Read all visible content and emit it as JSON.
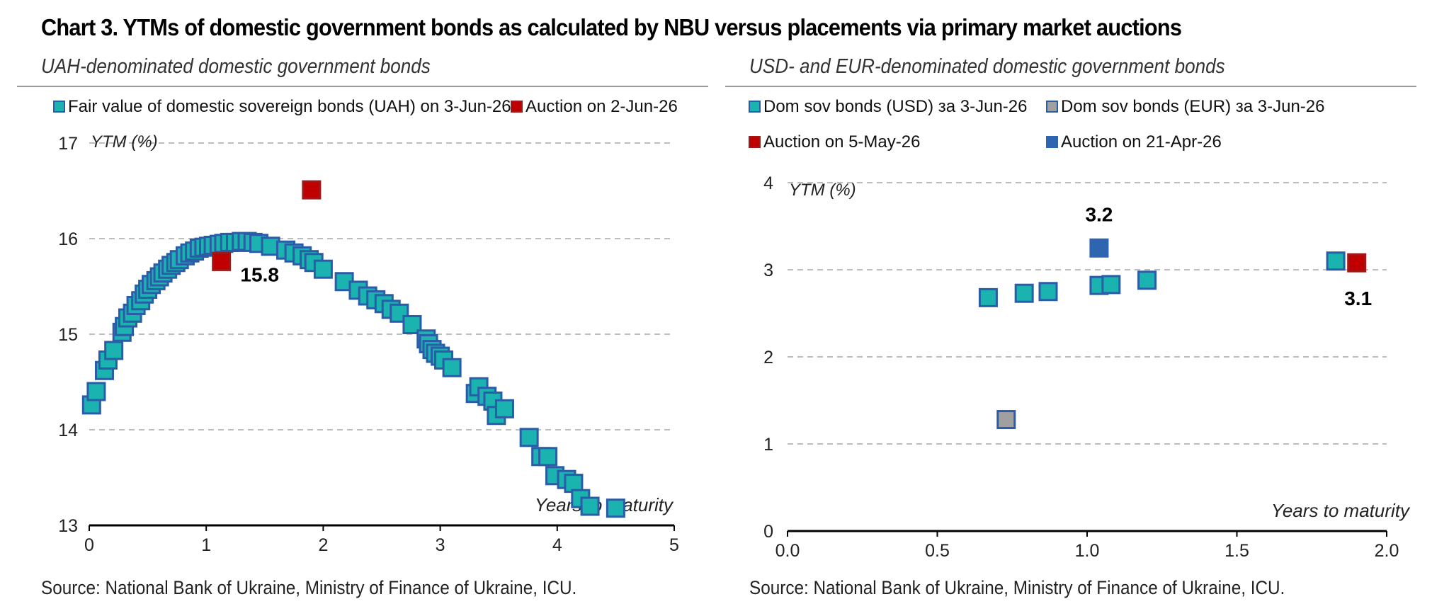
{
  "title": "Chart 3. YTMs of domestic government bonds as calculated by NBU versus placements via primary market auctions",
  "source_left": "Source: National Bank of Ukraine, Ministry of Finance of Ukraine, ICU.",
  "source_right": "Source: National Bank of Ukraine, Ministry of Finance of Ukraine, ICU.",
  "colors": {
    "teal": "#1ab3b0",
    "teal_edge": "#2a5ca8",
    "red": "#c00000",
    "red_edge": "#9e1a1a",
    "grey": "#a0a0a0",
    "blue": "#2d65b0",
    "grid": "#bdbdbd"
  },
  "chart_data": [
    {
      "type": "scatter",
      "subtitle": "UAH-denominated domestic government bonds",
      "ylabel": "YTM (%)",
      "xlabel": "Years to maturity",
      "xlim": [
        0,
        5
      ],
      "ylim": [
        13,
        17
      ],
      "xticks": [
        "0",
        "1",
        "2",
        "3",
        "4",
        "5"
      ],
      "yticks": [
        "13",
        "14",
        "15",
        "16",
        "17"
      ],
      "grid": "horizontal dashed",
      "legend_position": "top",
      "series": [
        {
          "name": "Fair value of domestic sovereign bonds (UAH) on 3-Jun-26",
          "color": "teal",
          "points": [
            [
              0.02,
              14.26
            ],
            [
              0.06,
              14.4
            ],
            [
              0.13,
              14.62
            ],
            [
              0.16,
              14.73
            ],
            [
              0.21,
              14.83
            ],
            [
              0.28,
              15.02
            ],
            [
              0.3,
              15.08
            ],
            [
              0.33,
              15.17
            ],
            [
              0.37,
              15.22
            ],
            [
              0.4,
              15.3
            ],
            [
              0.44,
              15.35
            ],
            [
              0.47,
              15.42
            ],
            [
              0.5,
              15.47
            ],
            [
              0.53,
              15.52
            ],
            [
              0.57,
              15.56
            ],
            [
              0.6,
              15.6
            ],
            [
              0.63,
              15.64
            ],
            [
              0.67,
              15.68
            ],
            [
              0.7,
              15.72
            ],
            [
              0.74,
              15.75
            ],
            [
              0.77,
              15.78
            ],
            [
              0.82,
              15.82
            ],
            [
              0.86,
              15.85
            ],
            [
              0.9,
              15.87
            ],
            [
              0.94,
              15.9
            ],
            [
              0.98,
              15.91
            ],
            [
              1.02,
              15.92
            ],
            [
              1.06,
              15.93
            ],
            [
              1.11,
              15.94
            ],
            [
              1.15,
              15.95
            ],
            [
              1.2,
              15.96
            ],
            [
              1.25,
              15.96
            ],
            [
              1.3,
              15.97
            ],
            [
              1.35,
              15.97
            ],
            [
              1.4,
              15.96
            ],
            [
              1.45,
              15.95
            ],
            [
              1.55,
              15.92
            ],
            [
              1.68,
              15.88
            ],
            [
              1.75,
              15.85
            ],
            [
              1.82,
              15.82
            ],
            [
              1.88,
              15.78
            ],
            [
              1.92,
              15.75
            ],
            [
              2.0,
              15.68
            ],
            [
              2.18,
              15.55
            ],
            [
              2.3,
              15.46
            ],
            [
              2.38,
              15.4
            ],
            [
              2.45,
              15.36
            ],
            [
              2.52,
              15.32
            ],
            [
              2.58,
              15.26
            ],
            [
              2.65,
              15.22
            ],
            [
              2.76,
              15.1
            ],
            [
              2.88,
              14.95
            ],
            [
              2.9,
              14.9
            ],
            [
              2.93,
              14.84
            ],
            [
              2.96,
              14.8
            ],
            [
              3.0,
              14.77
            ],
            [
              3.03,
              14.73
            ],
            [
              3.1,
              14.65
            ],
            [
              3.3,
              14.38
            ],
            [
              3.33,
              14.45
            ],
            [
              3.4,
              14.35
            ],
            [
              3.45,
              14.3
            ],
            [
              3.48,
              14.15
            ],
            [
              3.55,
              14.22
            ],
            [
              3.76,
              13.92
            ],
            [
              3.86,
              13.72
            ],
            [
              3.92,
              13.72
            ],
            [
              3.98,
              13.52
            ],
            [
              4.08,
              13.48
            ],
            [
              4.14,
              13.44
            ],
            [
              4.2,
              13.28
            ],
            [
              4.28,
              13.2
            ],
            [
              4.5,
              13.18
            ]
          ]
        },
        {
          "name": "Auction on 2-Jun-26",
          "color": "red",
          "points": [
            [
              1.13,
              15.76
            ],
            [
              1.9,
              16.51
            ]
          ],
          "label": "15.8",
          "label_at": [
            1.13,
            15.76
          ]
        }
      ]
    },
    {
      "type": "scatter",
      "subtitle": "USD- and EUR-denominated domestic government bonds",
      "ylabel": "YTM (%)",
      "xlabel": "Years to maturity",
      "xlim": [
        0,
        2
      ],
      "ylim": [
        0,
        4
      ],
      "xticks": [
        "0.0",
        "0.5",
        "1.0",
        "1.5",
        "2.0"
      ],
      "yticks": [
        "0",
        "1",
        "2",
        "3",
        "4"
      ],
      "grid": "horizontal dashed",
      "legend_position": "top",
      "series": [
        {
          "name": "Dom sov bonds (USD) за 3-Jun-26",
          "color": "teal",
          "points": [
            [
              0.67,
              2.68
            ],
            [
              0.79,
              2.73
            ],
            [
              0.87,
              2.75
            ],
            [
              1.04,
              2.82
            ],
            [
              1.08,
              2.83
            ],
            [
              1.2,
              2.88
            ],
            [
              1.83,
              3.1
            ]
          ]
        },
        {
          "name": "Dom sov bonds (EUR) за 3-Jun-26",
          "color": "grey",
          "points": [
            [
              0.73,
              1.28
            ]
          ]
        },
        {
          "name": "Auction on 5-May-26",
          "color": "red",
          "points": [
            [
              1.9,
              3.08
            ]
          ],
          "label": "3.1",
          "label_at": [
            1.9,
            3.08
          ]
        },
        {
          "name": "Auction on 21-Apr-26",
          "color": "blue",
          "points": [
            [
              1.04,
              3.25
            ]
          ],
          "label": "3.2",
          "label_at": [
            1.04,
            3.25
          ]
        }
      ]
    }
  ]
}
